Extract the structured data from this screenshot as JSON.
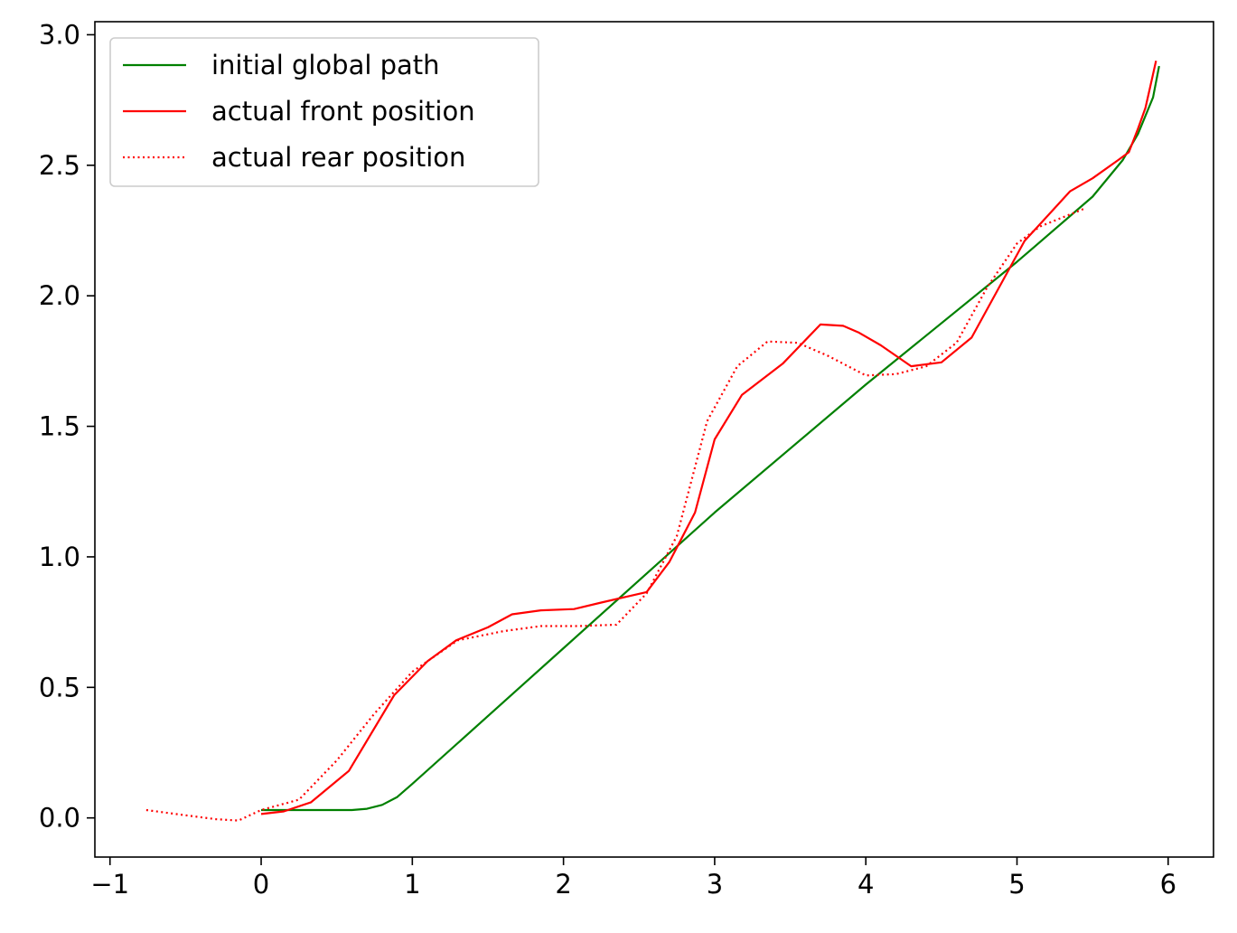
{
  "chart_data": {
    "type": "line",
    "title": "",
    "xlabel": "",
    "ylabel": "",
    "xlim": [
      -1.1,
      6.3
    ],
    "ylim": [
      -0.15,
      3.05
    ],
    "x_ticks": [
      {
        "value": -1,
        "label": "−1"
      },
      {
        "value": 0,
        "label": "0"
      },
      {
        "value": 1,
        "label": "1"
      },
      {
        "value": 2,
        "label": "2"
      },
      {
        "value": 3,
        "label": "3"
      },
      {
        "value": 4,
        "label": "4"
      },
      {
        "value": 5,
        "label": "5"
      },
      {
        "value": 6,
        "label": "6"
      }
    ],
    "y_ticks": [
      {
        "value": 0.0,
        "label": "0.0"
      },
      {
        "value": 0.5,
        "label": "0.5"
      },
      {
        "value": 1.0,
        "label": "1.0"
      },
      {
        "value": 1.5,
        "label": "1.5"
      },
      {
        "value": 2.0,
        "label": "2.0"
      },
      {
        "value": 2.5,
        "label": "2.5"
      },
      {
        "value": 3.0,
        "label": "3.0"
      }
    ],
    "grid": false,
    "legend_position": "upper-left",
    "series": [
      {
        "name": "initial global path",
        "color": "#008000",
        "style": "solid",
        "points": [
          [
            0.0,
            0.03
          ],
          [
            0.2,
            0.03
          ],
          [
            0.4,
            0.03
          ],
          [
            0.6,
            0.03
          ],
          [
            0.7,
            0.035
          ],
          [
            0.8,
            0.05
          ],
          [
            0.9,
            0.08
          ],
          [
            1.0,
            0.13
          ],
          [
            2.0,
            0.65
          ],
          [
            3.0,
            1.17
          ],
          [
            4.0,
            1.66
          ],
          [
            5.0,
            2.13
          ],
          [
            5.5,
            2.38
          ],
          [
            5.7,
            2.52
          ],
          [
            5.8,
            2.62
          ],
          [
            5.9,
            2.76
          ],
          [
            5.94,
            2.88
          ]
        ]
      },
      {
        "name": "actual front position",
        "color": "#ff0000",
        "style": "solid",
        "points": [
          [
            0.0,
            0.015
          ],
          [
            0.15,
            0.025
          ],
          [
            0.33,
            0.06
          ],
          [
            0.58,
            0.18
          ],
          [
            0.88,
            0.47
          ],
          [
            1.1,
            0.6
          ],
          [
            1.29,
            0.68
          ],
          [
            1.5,
            0.73
          ],
          [
            1.66,
            0.78
          ],
          [
            1.85,
            0.795
          ],
          [
            2.07,
            0.8
          ],
          [
            2.25,
            0.825
          ],
          [
            2.4,
            0.845
          ],
          [
            2.55,
            0.865
          ],
          [
            2.7,
            0.98
          ],
          [
            2.87,
            1.17
          ],
          [
            3.0,
            1.45
          ],
          [
            3.18,
            1.62
          ],
          [
            3.45,
            1.74
          ],
          [
            3.7,
            1.89
          ],
          [
            3.85,
            1.885
          ],
          [
            3.95,
            1.86
          ],
          [
            4.1,
            1.81
          ],
          [
            4.3,
            1.73
          ],
          [
            4.5,
            1.745
          ],
          [
            4.7,
            1.84
          ],
          [
            4.87,
            2.02
          ],
          [
            5.05,
            2.21
          ],
          [
            5.24,
            2.33
          ],
          [
            5.35,
            2.4
          ],
          [
            5.5,
            2.45
          ],
          [
            5.67,
            2.52
          ],
          [
            5.74,
            2.55
          ],
          [
            5.8,
            2.64
          ],
          [
            5.85,
            2.72
          ],
          [
            5.92,
            2.9
          ]
        ]
      },
      {
        "name": "actual rear position",
        "color": "#ff0000",
        "style": "dotted",
        "points": [
          [
            -0.76,
            0.03
          ],
          [
            -0.5,
            0.01
          ],
          [
            -0.3,
            -0.005
          ],
          [
            -0.15,
            -0.01
          ],
          [
            0.0,
            0.03
          ],
          [
            0.25,
            0.07
          ],
          [
            0.5,
            0.22
          ],
          [
            0.75,
            0.4
          ],
          [
            1.0,
            0.56
          ],
          [
            1.3,
            0.68
          ],
          [
            1.6,
            0.715
          ],
          [
            1.85,
            0.735
          ],
          [
            2.1,
            0.735
          ],
          [
            2.35,
            0.74
          ],
          [
            2.55,
            0.86
          ],
          [
            2.75,
            1.08
          ],
          [
            2.95,
            1.52
          ],
          [
            3.15,
            1.73
          ],
          [
            3.35,
            1.825
          ],
          [
            3.55,
            1.82
          ],
          [
            3.75,
            1.77
          ],
          [
            4.0,
            1.695
          ],
          [
            4.2,
            1.7
          ],
          [
            4.4,
            1.73
          ],
          [
            4.6,
            1.82
          ],
          [
            4.8,
            2.03
          ],
          [
            5.0,
            2.2
          ],
          [
            5.15,
            2.265
          ],
          [
            5.3,
            2.3
          ],
          [
            5.45,
            2.335
          ]
        ]
      }
    ]
  }
}
